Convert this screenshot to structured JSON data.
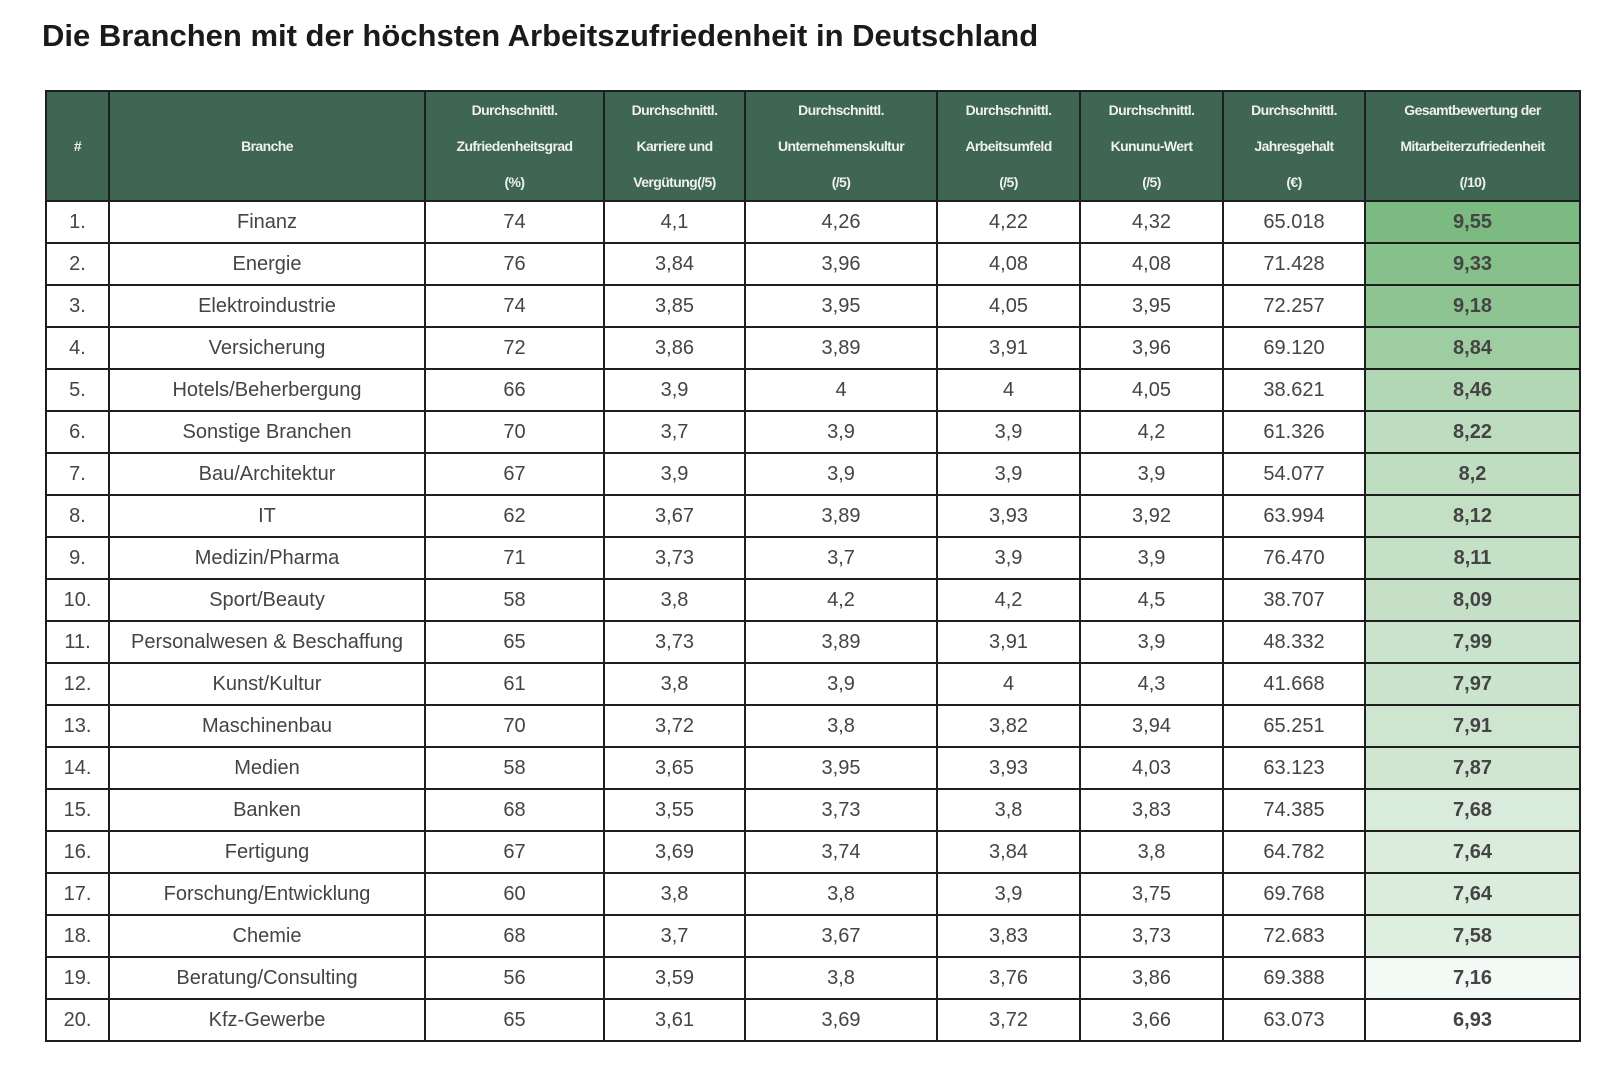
{
  "title": "Die Branchen mit der höchsten Arbeitszufriedenheit in Deutschland",
  "columns": [
    [
      "#"
    ],
    [
      "Branche"
    ],
    [
      "Durchschnittl.",
      "Zufriedenheitsgrad",
      "(%)"
    ],
    [
      "Durchschnittl.",
      "Karriere und",
      "Vergütung(/5)"
    ],
    [
      "Durchschnittl.",
      "Unternehmenskultur",
      "(/5)"
    ],
    [
      "Durchschnittl.",
      "Arbeitsumfeld",
      "(/5)"
    ],
    [
      "Durchschnittl.",
      "Kununu-Wert",
      "(/5)"
    ],
    [
      "Durchschnittl.",
      "Jahresgehalt",
      "(€)"
    ],
    [
      "Gesamtbewertung der",
      "Mitarbeiterzufriedenheit",
      "(/10)"
    ]
  ],
  "colors": {
    "header_bg": "#3f6652",
    "scale_high": "#7bba80",
    "scale_low": "#ffffff"
  },
  "rows": [
    [
      "1.",
      "Finanz",
      "74",
      "4,1",
      "4,26",
      "4,22",
      "4,32",
      "65.018",
      "9,55"
    ],
    [
      "2.",
      "Energie",
      "76",
      "3,84",
      "3,96",
      "4,08",
      "4,08",
      "71.428",
      "9,33"
    ],
    [
      "3.",
      "Elektroindustrie",
      "74",
      "3,85",
      "3,95",
      "4,05",
      "3,95",
      "72.257",
      "9,18"
    ],
    [
      "4.",
      "Versicherung",
      "72",
      "3,86",
      "3,89",
      "3,91",
      "3,96",
      "69.120",
      "8,84"
    ],
    [
      "5.",
      "Hotels/Beherbergung",
      "66",
      "3,9",
      "4",
      "4",
      "4,05",
      "38.621",
      "8,46"
    ],
    [
      "6.",
      "Sonstige Branchen",
      "70",
      "3,7",
      "3,9",
      "3,9",
      "4,2",
      "61.326",
      "8,22"
    ],
    [
      "7.",
      "Bau/Architektur",
      "67",
      "3,9",
      "3,9",
      "3,9",
      "3,9",
      "54.077",
      "8,2"
    ],
    [
      "8.",
      "IT",
      "62",
      "3,67",
      "3,89",
      "3,93",
      "3,92",
      "63.994",
      "8,12"
    ],
    [
      "9.",
      "Medizin/Pharma",
      "71",
      "3,73",
      "3,7",
      "3,9",
      "3,9",
      "76.470",
      "8,11"
    ],
    [
      "10.",
      "Sport/Beauty",
      "58",
      "3,8",
      "4,2",
      "4,2",
      "4,5",
      "38.707",
      "8,09"
    ],
    [
      "11.",
      "Personalwesen & Beschaffung",
      "65",
      "3,73",
      "3,89",
      "3,91",
      "3,9",
      "48.332",
      "7,99"
    ],
    [
      "12.",
      "Kunst/Kultur",
      "61",
      "3,8",
      "3,9",
      "4",
      "4,3",
      "41.668",
      "7,97"
    ],
    [
      "13.",
      "Maschinenbau",
      "70",
      "3,72",
      "3,8",
      "3,82",
      "3,94",
      "65.251",
      "7,91"
    ],
    [
      "14.",
      "Medien",
      "58",
      "3,65",
      "3,95",
      "3,93",
      "4,03",
      "63.123",
      "7,87"
    ],
    [
      "15.",
      "Banken",
      "68",
      "3,55",
      "3,73",
      "3,8",
      "3,83",
      "74.385",
      "7,68"
    ],
    [
      "16.",
      "Fertigung",
      "67",
      "3,69",
      "3,74",
      "3,84",
      "3,8",
      "64.782",
      "7,64"
    ],
    [
      "17.",
      "Forschung/Entwicklung",
      "60",
      "3,8",
      "3,8",
      "3,9",
      "3,75",
      "69.768",
      "7,64"
    ],
    [
      "18.",
      "Chemie",
      "68",
      "3,7",
      "3,67",
      "3,83",
      "3,73",
      "72.683",
      "7,58"
    ],
    [
      "19.",
      "Beratung/Consulting",
      "56",
      "3,59",
      "3,8",
      "3,76",
      "3,86",
      "69.388",
      "7,16"
    ],
    [
      "20.",
      "Kfz-Gewerbe",
      "65",
      "3,61",
      "3,69",
      "3,72",
      "3,66",
      "63.073",
      "6,93"
    ]
  ]
}
